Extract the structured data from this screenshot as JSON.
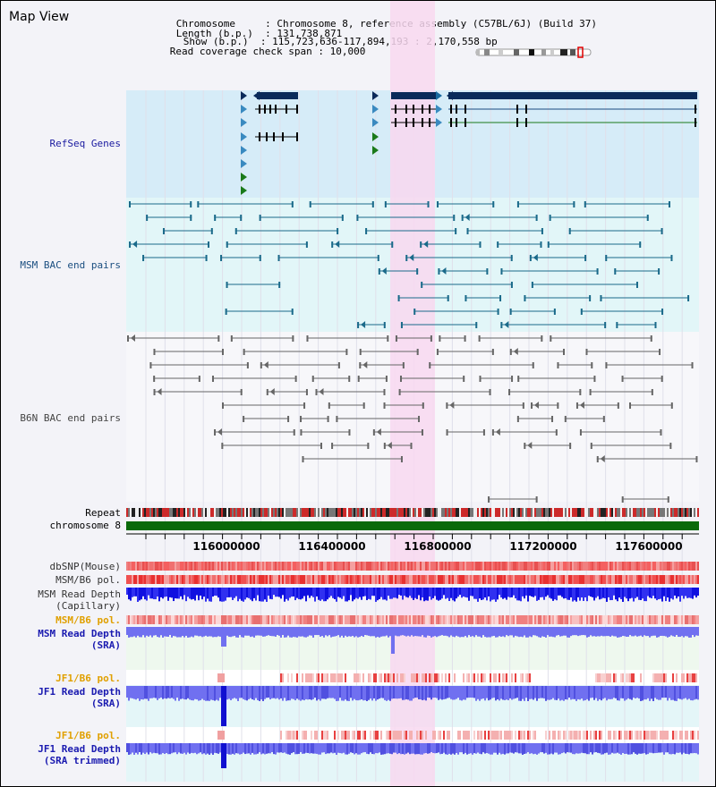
{
  "app_title": "Map View",
  "header": {
    "chromosome_key": "Chromosome",
    "chromosome_value": "Chromosome 8, reference assembly (C57BL/6J) (Build 37)",
    "length_key": "Length (b.p.)",
    "length_value": "131,738,871",
    "show_key": "Show (b.p.)",
    "show_value": "115,723,636-117,894,193 : 2,170,558 bp",
    "coverage_key": "Read coverage check span",
    "coverage_value": "10,000"
  },
  "tracks": {
    "refseq": "RefSeq Genes",
    "msm_bac": "MSM BAC end pairs",
    "b6n_bac": "B6N BAC end pairs",
    "repeat": "Repeat",
    "chromosome": "chromosome 8",
    "dbsnp": "dbSNP(Mouse)",
    "msm_b6_pol": "MSM/B6 pol.",
    "msm_read_depth_cap_1": "MSM Read Depth",
    "msm_read_depth_cap_2": "(Capillary)",
    "msm_b6_pol_2": "MSM/B6 pol.",
    "msm_read_depth_sra_1": "MSM Read Depth",
    "msm_read_depth_sra_2": "(SRA)",
    "jf1_b6_pol": "JF1/B6 pol.",
    "jf1_read_depth_sra_1": "JF1 Read Depth",
    "jf1_read_depth_sra_2": "(SRA)",
    "jf1_b6_pol_2": "JF1/B6 pol.",
    "jf1_read_depth_trim_1": "JF1 Read Depth",
    "jf1_read_depth_trim_2": "(SRA trimmed)"
  },
  "axis": {
    "ticks": [
      "116000000",
      "116400000",
      "116800000",
      "117200000",
      "117600000"
    ]
  },
  "colors": {
    "refseq_bg": "#d6ecf8",
    "msm_bg": "#e2f6f8",
    "highlight": "#f8d8f0",
    "gene": "#0a2a5a",
    "bac_msm": "#1a6a8a",
    "bac_b6n": "#666666",
    "chrom": "#0a6a0a",
    "depth_blue": "#2020e0",
    "depth_light": "#7070f0"
  }
}
